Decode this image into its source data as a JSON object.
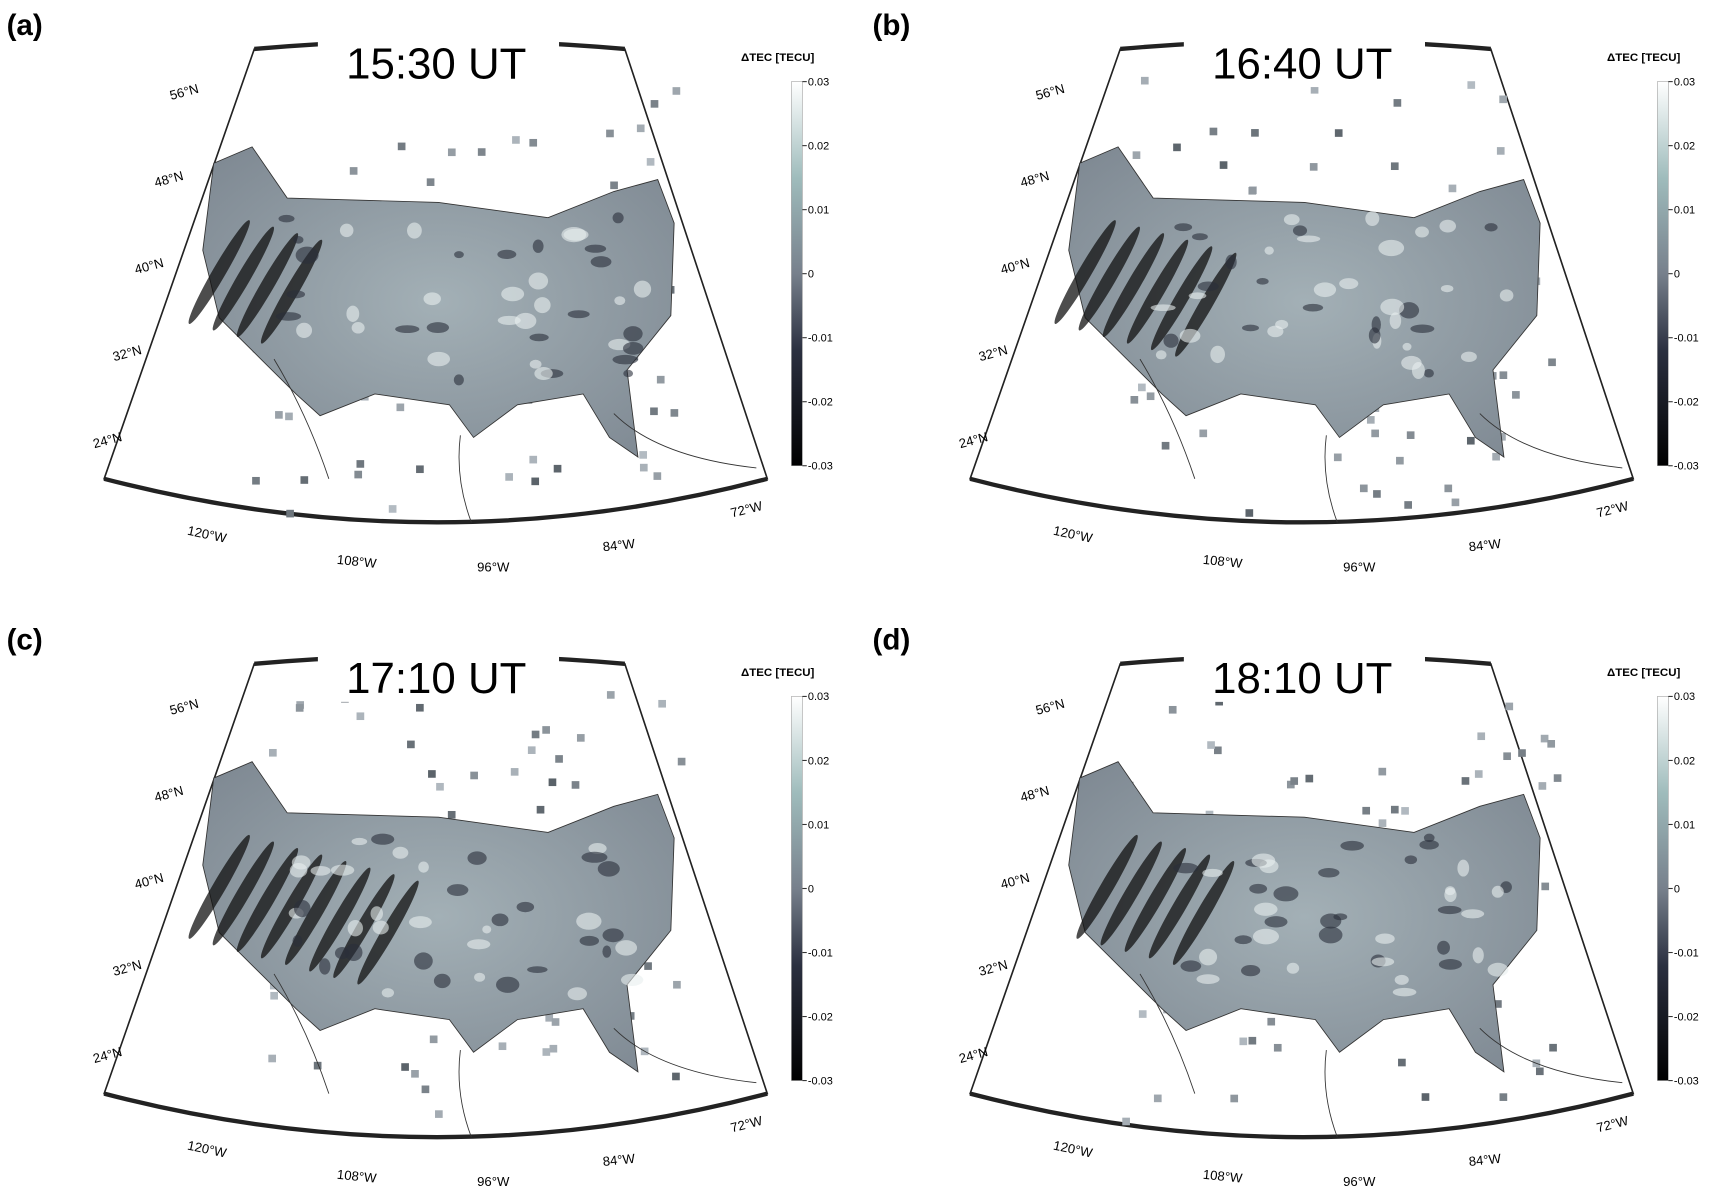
{
  "panels": [
    {
      "label": "(a)",
      "time": "15:30 UT",
      "colorbar": {
        "title": "ΔTEC [TECU]",
        "lim": [
          -0.03,
          0.03
        ],
        "ticks": [
          0.03,
          0.02,
          0.01,
          0,
          -0.01,
          -0.02,
          -0.03
        ]
      },
      "lat_labels": [
        "56°N",
        "48°N",
        "40°N",
        "32°N",
        "24°N"
      ],
      "lon_labels": [
        "120°W",
        "108°W",
        "96°W",
        "84°W",
        "72°W"
      ]
    },
    {
      "label": "(b)",
      "time": "16:40 UT",
      "colorbar": {
        "title": "ΔTEC [TECU]",
        "lim": [
          -0.03,
          0.03
        ],
        "ticks": [
          0.03,
          0.02,
          0.01,
          0,
          -0.01,
          -0.02,
          -0.03
        ]
      },
      "lat_labels": [
        "56°N",
        "48°N",
        "40°N",
        "32°N",
        "24°N"
      ],
      "lon_labels": [
        "120°W",
        "108°W",
        "96°W",
        "84°W",
        "72°W"
      ]
    },
    {
      "label": "(c)",
      "time": "17:10 UT",
      "colorbar": {
        "title": "ΔTEC [TECU]",
        "lim": [
          -0.03,
          0.03
        ],
        "ticks": [
          0.03,
          0.02,
          0.01,
          0,
          -0.01,
          -0.02,
          -0.03
        ]
      },
      "lat_labels": [
        "56°N",
        "48°N",
        "40°N",
        "32°N",
        "24°N"
      ],
      "lon_labels": [
        "120°W",
        "108°W",
        "96°W",
        "84°W",
        "72°W"
      ]
    },
    {
      "label": "(d)",
      "time": "18:10 UT",
      "colorbar": {
        "title": "ΔTEC [TECU]",
        "lim": [
          -0.03,
          0.03
        ],
        "ticks": [
          0.03,
          0.02,
          0.01,
          0,
          -0.01,
          -0.02,
          -0.03
        ]
      },
      "lat_labels": [
        "56°N",
        "48°N",
        "40°N",
        "32°N",
        "24°N"
      ],
      "lon_labels": [
        "120°W",
        "108°W",
        "96°W",
        "84°W",
        "72°W"
      ]
    }
  ]
}
